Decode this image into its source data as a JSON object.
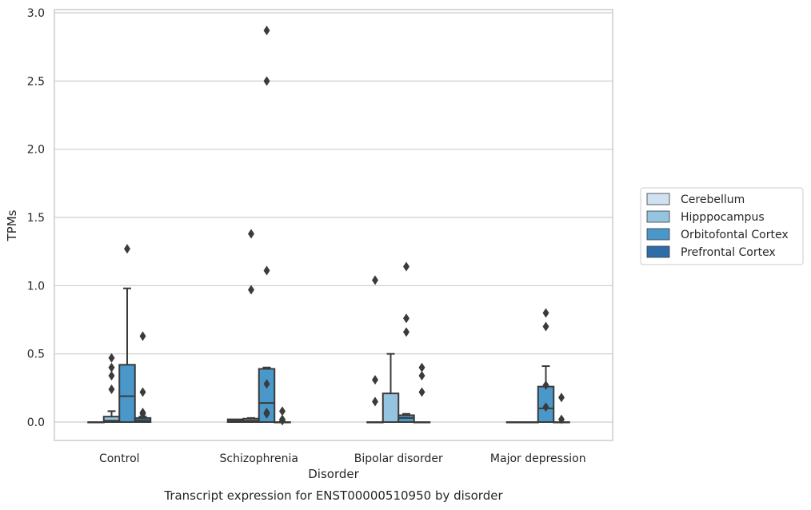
{
  "chart_data": {
    "type": "box",
    "title": "",
    "caption": "Transcript expression for ENST00000510950 by disorder",
    "xlabel": "Disorder",
    "ylabel": "TPMs",
    "ylim": [
      -0.14,
      3.02
    ],
    "yticks": [
      0.0,
      0.5,
      1.0,
      1.5,
      2.0,
      2.5,
      3.0
    ],
    "ytick_labels": [
      "0.0",
      "0.5",
      "1.0",
      "1.5",
      "2.0",
      "2.5",
      "3.0"
    ],
    "grid": "y",
    "legend_position": "right",
    "categories": [
      "Control",
      "Schizophrenia",
      "Bipolar disorder",
      "Major depression"
    ],
    "series": [
      {
        "name": "Cerebellum",
        "color": "#d0e1f2",
        "boxes": [
          {
            "q1": 0,
            "median": 0,
            "q3": 0,
            "whisker_low": 0,
            "whisker_high": 0,
            "outliers": []
          },
          {
            "q1": 0,
            "median": 0.01,
            "q3": 0.02,
            "whisker_low": 0,
            "whisker_high": 0.02,
            "outliers": []
          },
          {
            "q1": 0,
            "median": 0,
            "q3": 0,
            "whisker_low": 0,
            "whisker_high": 0,
            "outliers": [
              0.31,
              0.15,
              1.04
            ]
          },
          {
            "q1": 0,
            "median": 0,
            "q3": 0,
            "whisker_low": 0,
            "whisker_high": 0,
            "outliers": []
          }
        ]
      },
      {
        "name": "Hipppocampus",
        "color": "#94c4df",
        "boxes": [
          {
            "q1": 0,
            "median": 0.01,
            "q3": 0.04,
            "whisker_low": 0,
            "whisker_high": 0.08,
            "outliers": [
              0.4,
              0.34,
              0.24,
              0.47
            ]
          },
          {
            "q1": 0,
            "median": 0.01,
            "q3": 0.025,
            "whisker_low": 0,
            "whisker_high": 0.03,
            "outliers": [
              1.38,
              0.97
            ]
          },
          {
            "q1": 0,
            "median": 0,
            "q3": 0.21,
            "whisker_low": 0,
            "whisker_high": 0.5,
            "outliers": []
          },
          {
            "q1": 0,
            "median": 0,
            "q3": 0,
            "whisker_low": 0,
            "whisker_high": 0,
            "outliers": []
          }
        ]
      },
      {
        "name": "Orbitofontal Cortex",
        "color": "#4a98c9",
        "boxes": [
          {
            "q1": 0,
            "median": 0.19,
            "q3": 0.42,
            "whisker_low": 0,
            "whisker_high": 0.98,
            "outliers": [
              1.27
            ]
          },
          {
            "q1": 0,
            "median": 0.14,
            "q3": 0.39,
            "whisker_low": 0,
            "whisker_high": 0.4,
            "outliers": [
              0.28,
              0.07,
              0.06,
              1.11,
              2.5,
              2.87
            ]
          },
          {
            "q1": 0,
            "median": 0.03,
            "q3": 0.05,
            "whisker_low": 0,
            "whisker_high": 0.06,
            "outliers": [
              1.14,
              0.76,
              0.66
            ]
          },
          {
            "q1": 0,
            "median": 0.1,
            "q3": 0.26,
            "whisker_low": 0,
            "whisker_high": 0.41,
            "outliers": [
              0.27,
              0.11,
              0.8,
              0.7
            ]
          }
        ]
      },
      {
        "name": "Prefrontal Cortex",
        "color": "#2e6da8",
        "boxes": [
          {
            "q1": 0,
            "median": 0.01,
            "q3": 0.03,
            "whisker_low": 0,
            "whisker_high": 0.04,
            "outliers": [
              0.63,
              0.22,
              0.07,
              0.06
            ]
          },
          {
            "q1": 0,
            "median": 0,
            "q3": 0,
            "whisker_low": 0,
            "whisker_high": 0,
            "outliers": [
              0.08,
              0.02,
              0.01
            ]
          },
          {
            "q1": 0,
            "median": 0,
            "q3": 0,
            "whisker_low": 0,
            "whisker_high": 0,
            "outliers": [
              0.4,
              0.34,
              0.22
            ]
          },
          {
            "q1": 0,
            "median": 0,
            "q3": 0,
            "whisker_low": 0,
            "whisker_high": 0,
            "outliers": [
              0.18,
              0.02
            ]
          }
        ]
      }
    ]
  }
}
